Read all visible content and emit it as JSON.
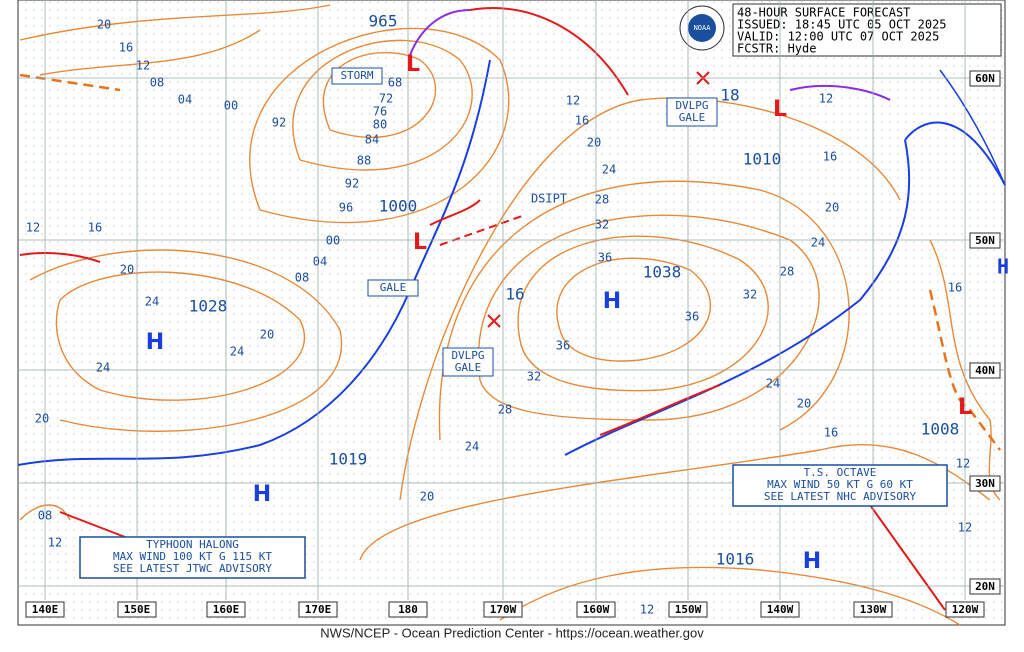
{
  "header": {
    "title": "48-HOUR SURFACE FORECAST",
    "lines": [
      "ISSUED: 18:45 UTC 05 OCT 2025",
      "VALID:  12:00 UTC 07 OCT 2025",
      "FCSTR:  Hyde"
    ]
  },
  "longitudes": [
    "140E",
    "150E",
    "160E",
    "170E",
    "180",
    "170W",
    "160W",
    "150W",
    "140W",
    "130W",
    "120W"
  ],
  "latitudes": [
    "60N",
    "50N",
    "40N",
    "30N",
    "20N"
  ],
  "centers": [
    {
      "symbol": "L",
      "value": "965"
    },
    {
      "symbol": "L",
      "value": "1000"
    },
    {
      "symbol": "H",
      "value": "1028"
    },
    {
      "symbol": "H",
      "value": "1038"
    },
    {
      "symbol": "H",
      "value": "1019"
    },
    {
      "symbol": "H",
      "value": "1016"
    },
    {
      "symbol": "L",
      "value": "1010"
    },
    {
      "symbol": "L",
      "value": "1008"
    }
  ],
  "minor_centers": [
    "18",
    "16"
  ],
  "right_edge_symbol": "H",
  "boxes": [
    "STORM",
    "GALE",
    "DVLPG\nGALE",
    "DVLPG\nGALE"
  ],
  "dsipt": "DSIPT",
  "isobar_labels": [
    "20",
    "16",
    "12",
    "08",
    "04",
    "00",
    "92",
    "68",
    "72",
    "76",
    "80",
    "84",
    "88",
    "92",
    "96",
    "00",
    "04",
    "08",
    "12",
    "16",
    "20",
    "24",
    "20",
    "24",
    "24",
    "20",
    "08",
    "12",
    "12",
    "16",
    "20",
    "24",
    "28",
    "32",
    "36",
    "36",
    "32",
    "28",
    "24",
    "20",
    "16",
    "12",
    "36",
    "32",
    "28",
    "24",
    "20",
    "24",
    "20",
    "16",
    "12",
    "12",
    "16",
    "12"
  ],
  "advisories": [
    {
      "lines": [
        "TYPHOON HALONG",
        "MAX WIND 100 KT G 115 KT",
        "SEE LATEST JTWC ADVISORY"
      ]
    },
    {
      "lines": [
        "T.S. OCTAVE",
        "MAX WIND 50 KT G 60 KT",
        "SEE LATEST NHC ADVISORY"
      ]
    }
  ],
  "logo": "NOAA",
  "footer": "NWS/NCEP - Ocean Prediction Center - https://ocean.weather.gov"
}
